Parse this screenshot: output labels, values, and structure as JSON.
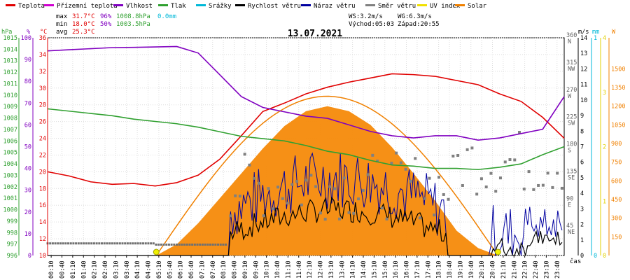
{
  "legend": [
    {
      "label": "Teplota",
      "color": "#e00000"
    },
    {
      "label": "Přízemní teplota",
      "color": "#d000d0"
    },
    {
      "label": "Vlhkost",
      "color": "#8000c0"
    },
    {
      "label": "Tlak",
      "color": "#30a030"
    },
    {
      "label": "Srážky",
      "color": "#00b8d8"
    },
    {
      "label": "Rychlost větru",
      "color": "#000000"
    },
    {
      "label": "Náraz větru",
      "color": "#0000a0"
    },
    {
      "label": "Směr větru",
      "color": "#808080"
    },
    {
      "label": "UV index",
      "color": "#f0e000"
    },
    {
      "label": "Solar",
      "color": "#f08000"
    }
  ],
  "stats": {
    "max_label": "max",
    "max_temp": "31.7°C",
    "max_hum": "96%",
    "max_press": "1008.8hPa",
    "max_rain": "0.0mm",
    "min_label": "min",
    "min_temp": "18.0°C",
    "min_hum": "50%",
    "min_press": "1003.5hPa",
    "avg_label": "avg",
    "avg_temp": "25.3°C",
    "ws": "WS:3.2m/s",
    "wg": "WG:6.3m/s",
    "sunrise": "Východ:05:03",
    "sunset": "Západ:20:55"
  },
  "chart_data": {
    "type": "line",
    "title": "13.07.2021",
    "xlabel": "čas",
    "axes": {
      "pressure": {
        "unit": "hPa",
        "range": [
          996,
          1015
        ],
        "ticks": [
          996,
          997,
          998,
          999,
          1000,
          1001,
          1002,
          1003,
          1004,
          1005,
          1006,
          1007,
          1008,
          1009,
          1010,
          1011,
          1012,
          1013,
          1014,
          1015
        ]
      },
      "humidity": {
        "unit": "%",
        "range": [
          0,
          100
        ],
        "ticks": [
          0,
          10,
          20,
          30,
          40,
          50,
          60,
          70,
          80,
          90,
          100
        ]
      },
      "temperature": {
        "unit": "°C",
        "range": [
          10,
          36
        ],
        "ticks": [
          10,
          12,
          14,
          16,
          18,
          20,
          22,
          24,
          26,
          28,
          30,
          32,
          34,
          36
        ]
      },
      "direction": {
        "range": [
          0,
          360
        ],
        "ticks": [
          "45 NE",
          "90 E",
          "135 SE",
          "180 S",
          "225 SW",
          "270 W",
          "315 NW",
          "360 N"
        ]
      },
      "wind": {
        "unit": "m/s",
        "range": [
          0,
          14
        ],
        "ticks": [
          0,
          1,
          2,
          3,
          4,
          5,
          6,
          7,
          8,
          9,
          10,
          11,
          12,
          13,
          14
        ]
      },
      "rain": {
        "unit": "mm",
        "range": [
          0,
          1
        ],
        "ticks": [
          0,
          1
        ]
      },
      "uv": {
        "range": [
          0,
          4
        ],
        "ticks": [
          0,
          1,
          2,
          3,
          4
        ]
      },
      "solar": {
        "unit": "W",
        "range": [
          0,
          1750
        ],
        "ticks": [
          150,
          300,
          450,
          600,
          750,
          900,
          1050,
          1200,
          1350,
          1500
        ]
      }
    },
    "x_ticks": [
      "00:10",
      "00:40",
      "01:10",
      "01:40",
      "02:10",
      "02:40",
      "03:10",
      "03:40",
      "04:10",
      "04:40",
      "05:10",
      "05:40",
      "06:10",
      "06:40",
      "07:10",
      "07:40",
      "08:10",
      "08:40",
      "09:10",
      "09:40",
      "10:10",
      "10:40",
      "11:10",
      "11:40",
      "12:10",
      "12:40",
      "13:10",
      "13:40",
      "14:10",
      "14:40",
      "15:10",
      "15:40",
      "16:10",
      "16:40",
      "17:10",
      "17:40",
      "18:10",
      "18:40",
      "19:10",
      "19:40",
      "20:10",
      "20:40",
      "21:10",
      "21:40",
      "22:10",
      "22:40",
      "23:10",
      "23:40"
    ],
    "series": [
      {
        "name": "Teplota",
        "axis": "temperature",
        "hours": [
          0,
          1,
          2,
          3,
          4,
          5,
          6,
          7,
          8,
          9,
          10,
          11,
          12,
          13,
          14,
          15,
          16,
          17,
          18,
          19,
          20,
          21,
          22,
          23,
          24
        ],
        "values": [
          20.0,
          19.5,
          18.8,
          18.5,
          18.6,
          18.3,
          18.7,
          19.6,
          21.5,
          24.3,
          27.2,
          28.2,
          29.3,
          30.1,
          30.7,
          31.2,
          31.7,
          31.6,
          31.4,
          30.9,
          30.4,
          29.3,
          28.4,
          26.5,
          24.0
        ]
      },
      {
        "name": "Vlhkost",
        "axis": "humidity",
        "hours": [
          0,
          1,
          2,
          3,
          4,
          5,
          6,
          7,
          8,
          9,
          10,
          11,
          12,
          13,
          14,
          15,
          16,
          17,
          18,
          19,
          20,
          21,
          22,
          23,
          24
        ],
        "values": [
          94,
          94.5,
          95,
          95.5,
          95.6,
          95.8,
          96,
          93,
          83,
          73,
          68,
          66,
          64,
          63,
          60,
          57,
          55,
          54,
          55,
          55,
          53,
          54,
          56,
          58,
          73
        ]
      },
      {
        "name": "Tlak",
        "axis": "pressure",
        "hours": [
          0,
          1,
          2,
          3,
          4,
          5,
          6,
          7,
          8,
          9,
          10,
          11,
          12,
          13,
          14,
          15,
          16,
          17,
          18,
          19,
          20,
          21,
          22,
          23,
          24
        ],
        "values": [
          1008.8,
          1008.6,
          1008.4,
          1008.2,
          1007.9,
          1007.7,
          1007.5,
          1007.2,
          1006.8,
          1006.4,
          1006.2,
          1006.0,
          1005.6,
          1005.1,
          1004.8,
          1004.3,
          1003.9,
          1003.8,
          1003.6,
          1003.6,
          1003.5,
          1003.7,
          1004.0,
          1004.8,
          1005.5
        ]
      },
      {
        "name": "Solar",
        "axis": "solar",
        "hours": [
          5.05,
          6,
          7,
          8,
          9,
          10,
          11,
          12,
          13,
          14,
          15,
          16,
          17,
          18,
          19,
          20,
          20.92
        ],
        "values": [
          0,
          90,
          260,
          460,
          660,
          860,
          1040,
          1160,
          1200,
          1160,
          1050,
          870,
          660,
          440,
          200,
          60,
          0
        ]
      }
    ]
  }
}
